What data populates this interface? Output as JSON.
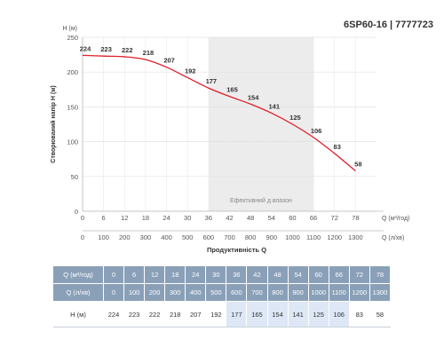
{
  "model": "6SP60-16 | 7777723",
  "chart_data": {
    "type": "line",
    "ylabel": "Створюваний напір Н (м)",
    "yunit": "Н (м)",
    "xlabel": "Продуктивність Q",
    "x_unit_top": "Q (м³/год)",
    "x_unit_bottom": "Q (л/хв)",
    "x_top": [
      0,
      6,
      12,
      18,
      24,
      30,
      36,
      42,
      48,
      54,
      60,
      66,
      72,
      78
    ],
    "x_bottom": [
      0,
      100,
      200,
      300,
      400,
      500,
      600,
      700,
      800,
      900,
      1000,
      1100,
      1200,
      1300
    ],
    "values": [
      224,
      223,
      222,
      218,
      207,
      192,
      177,
      165,
      154,
      141,
      125,
      106,
      83,
      58
    ],
    "yticks": [
      0,
      50,
      100,
      150,
      200,
      250
    ],
    "ylim": [
      0,
      250
    ],
    "xlim": [
      0,
      84
    ],
    "efficient_range": {
      "label": "Ефективний діапазон",
      "from": 36,
      "to": 66
    },
    "grid": true,
    "line_color": "#e01e26",
    "band_color": "#ececec"
  },
  "table": {
    "row1_label": "Q (м³/год)",
    "row2_label": "Q (л/хв)",
    "row3_label": "Н (м)",
    "q_m3h": [
      0,
      6,
      12,
      18,
      24,
      30,
      36,
      42,
      48,
      54,
      60,
      66,
      72,
      78
    ],
    "q_lmin": [
      0,
      100,
      200,
      300,
      400,
      500,
      600,
      700,
      800,
      900,
      1000,
      1100,
      1200,
      1300
    ],
    "h_m": [
      224,
      223,
      222,
      218,
      207,
      192,
      177,
      165,
      154,
      141,
      125,
      106,
      83,
      58
    ],
    "highlight_from_index": 6,
    "highlight_to_index": 11
  }
}
